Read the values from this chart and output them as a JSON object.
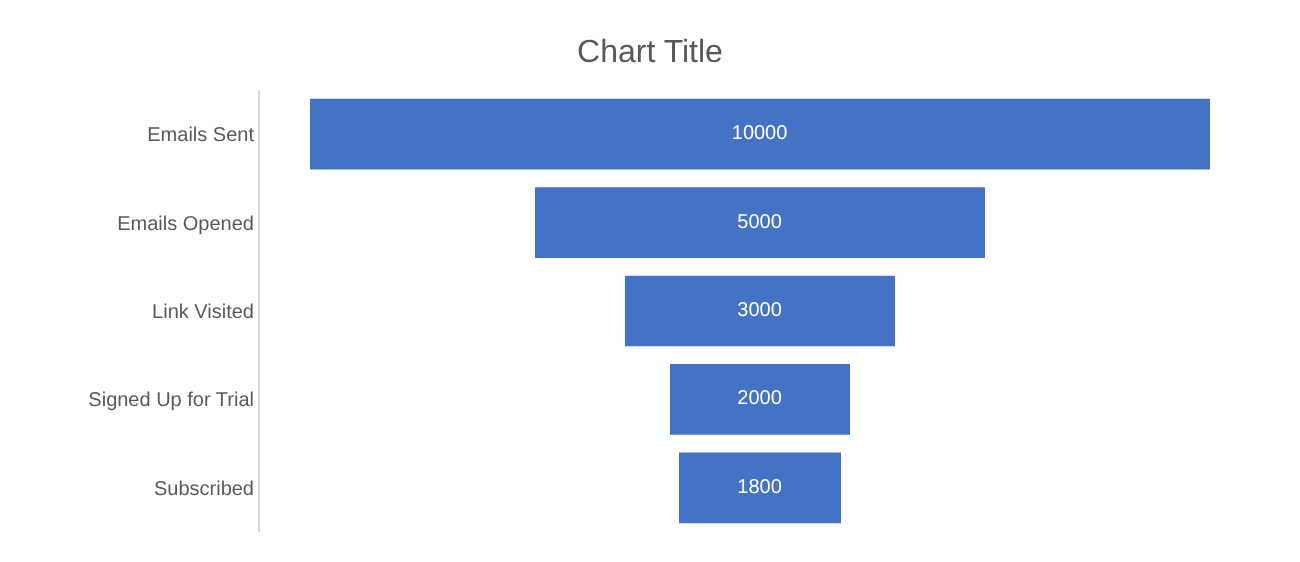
{
  "chart_data": {
    "type": "other",
    "title": "Chart Title",
    "categories": [
      "Emails Sent",
      "Emails Opened",
      "Link Visited",
      "Signed Up for Trial",
      "Subscribed"
    ],
    "values": [
      10000,
      5000,
      3000,
      2000,
      1800
    ],
    "color": "#4472c4",
    "data_labels": true
  }
}
